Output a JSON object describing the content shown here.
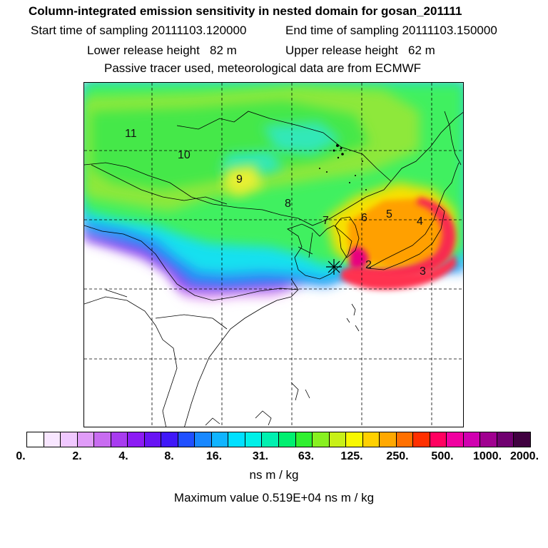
{
  "header": {
    "title": "Column-integrated emission sensitivity in nested domain for gosan_201111",
    "start_sampling": "Start time of sampling 20111103.120000",
    "end_sampling": "End time of sampling 20111103.150000",
    "lower_release": "Lower release height   82 m",
    "upper_release": "Upper release height   62 m",
    "note": "Passive tracer used, meteorological data are from ECMWF"
  },
  "map": {
    "trajectory_labels": [
      "2",
      "3",
      "4",
      "5",
      "6",
      "7",
      "8",
      "9",
      "10",
      "11"
    ],
    "release_marker": "release-site-star"
  },
  "colorbar": {
    "tick_labels": [
      "0.",
      "2.",
      "4.",
      "8.",
      "16.",
      "31.",
      "63.",
      "125.",
      "250.",
      "500.",
      "1000.",
      "2000."
    ],
    "units": "ns m / kg",
    "colors": [
      "#ffffff",
      "#f8e6ff",
      "#f0c8ff",
      "#e09cf8",
      "#c86cf0",
      "#a83cf0",
      "#8c1cf4",
      "#6814f4",
      "#4018f8",
      "#2050ff",
      "#1888ff",
      "#10b4ff",
      "#00e0ff",
      "#00f0e8",
      "#00f0b0",
      "#00f070",
      "#30f030",
      "#88f020",
      "#c8f018",
      "#f8f800",
      "#ffd000",
      "#ffa800",
      "#ff7000",
      "#ff3000",
      "#ff0060",
      "#f000a0",
      "#d000b0",
      "#a00090",
      "#700070",
      "#400040"
    ]
  },
  "max_value": "Maximum value  0.519E+04 ns m / kg"
}
